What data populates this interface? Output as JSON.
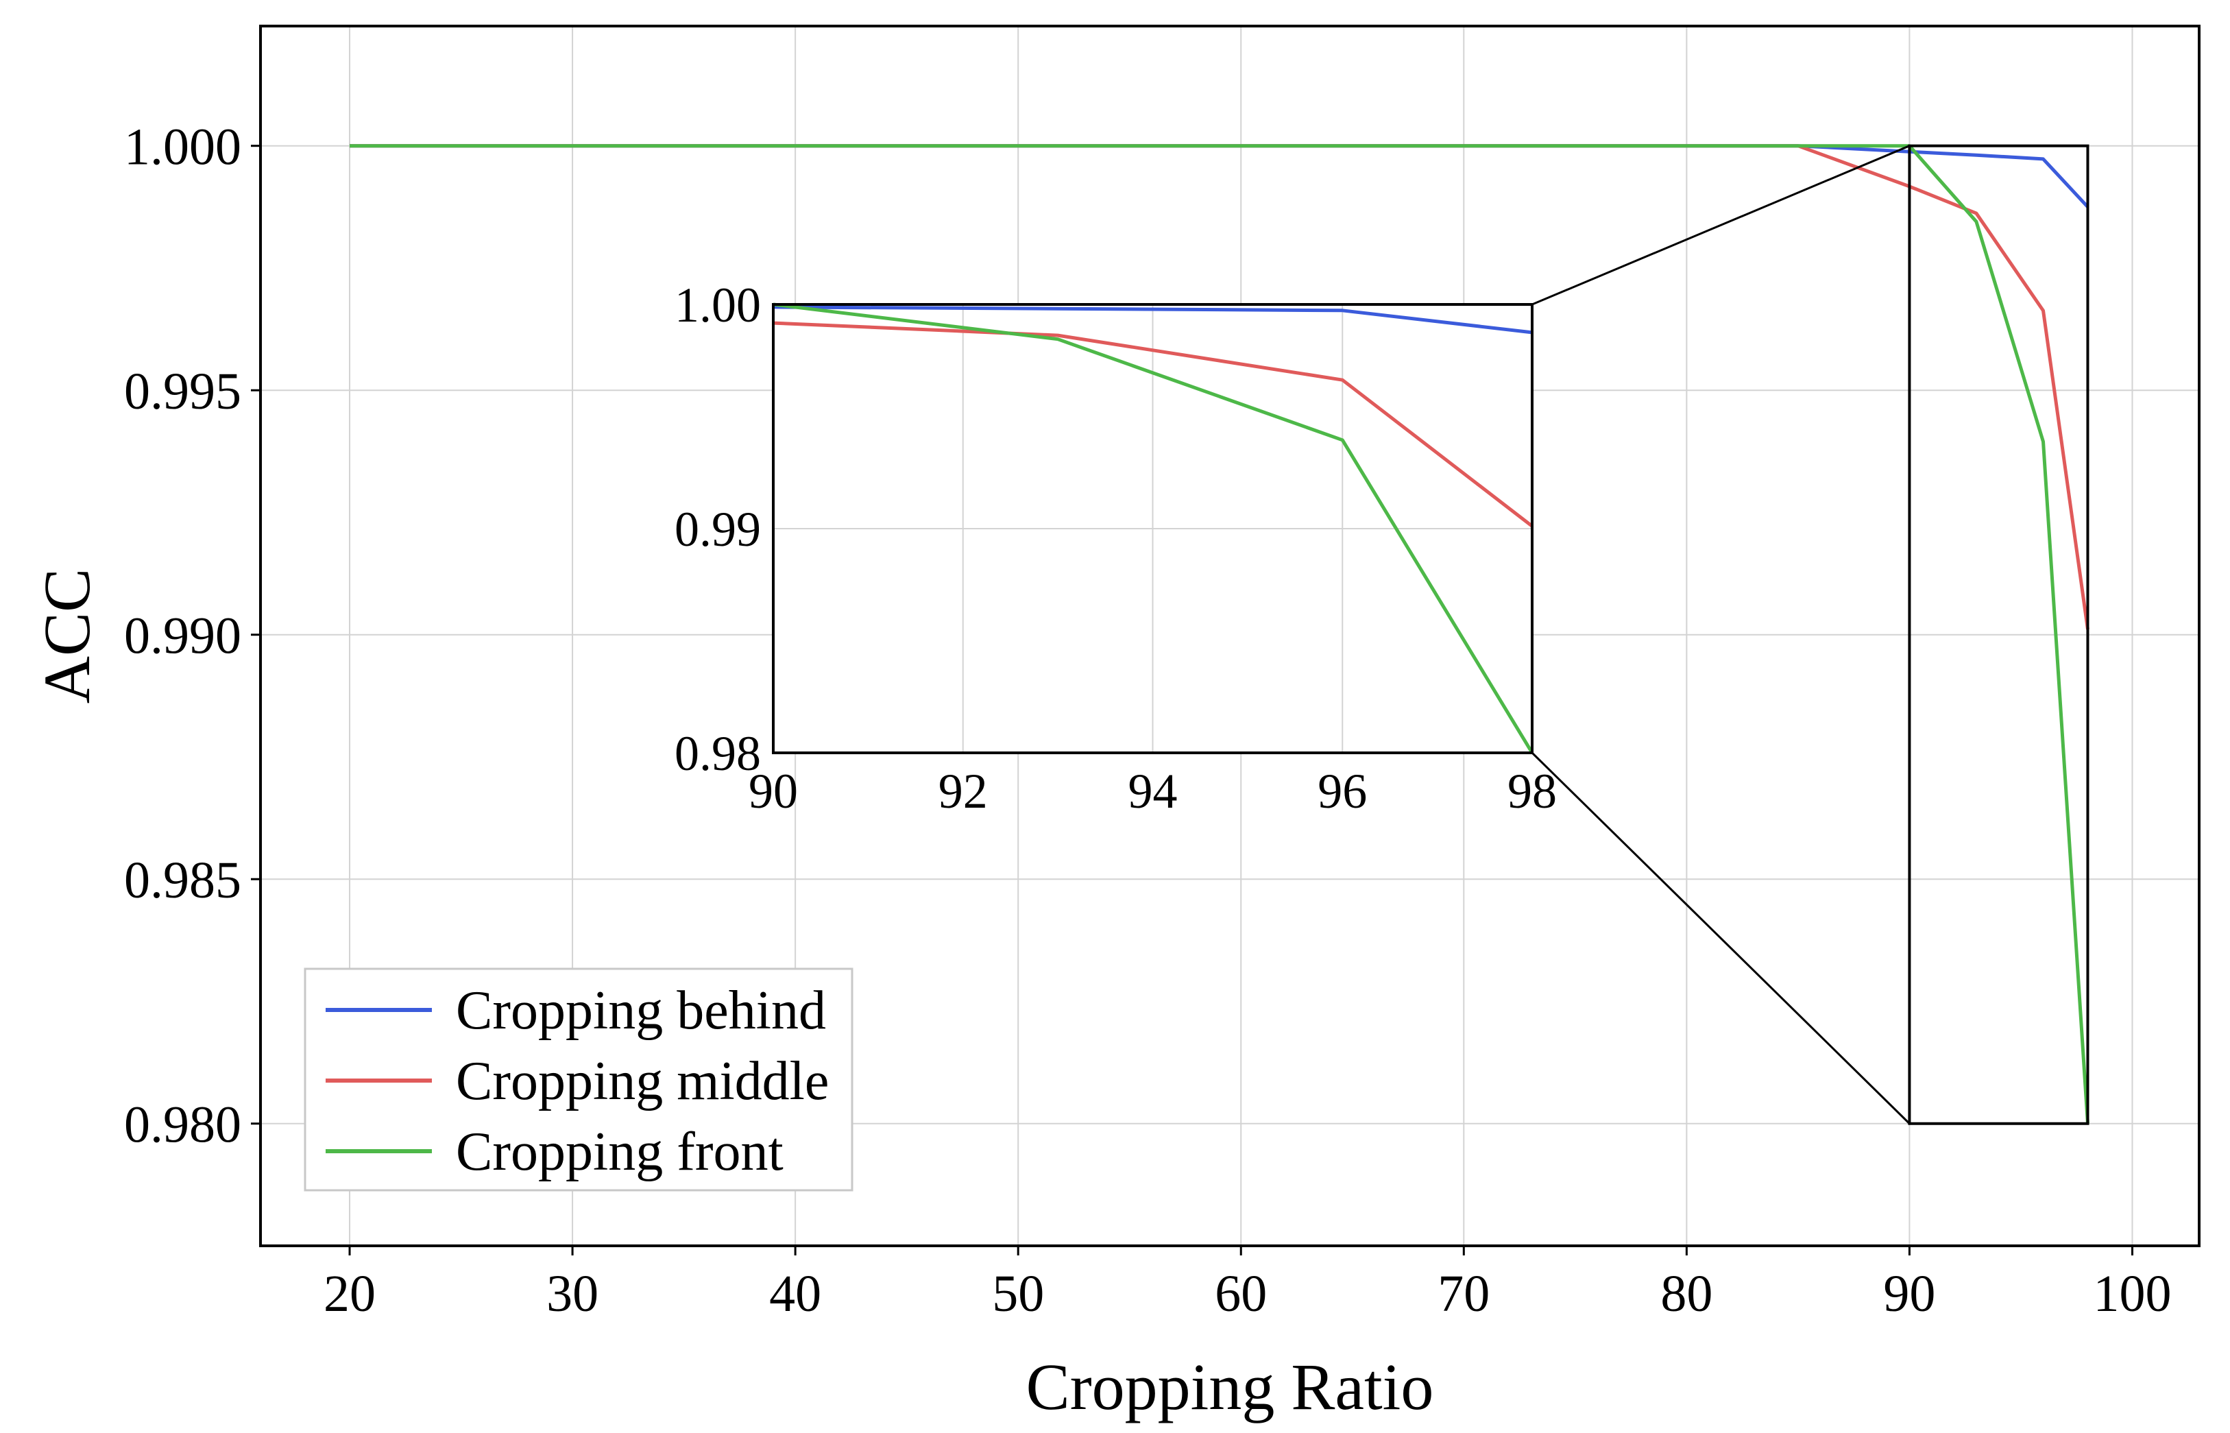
{
  "chart_data": {
    "type": "line",
    "xlabel": "Cropping Ratio",
    "ylabel": "ACC",
    "xlim": [
      16,
      103
    ],
    "ylim": [
      0.9775,
      1.00245
    ],
    "xticks": [
      20,
      30,
      40,
      50,
      60,
      70,
      80,
      90,
      100
    ],
    "xtick_labels": [
      "20",
      "30",
      "40",
      "50",
      "60",
      "70",
      "80",
      "90",
      "100"
    ],
    "yticks": [
      0.98,
      0.985,
      0.99,
      0.995,
      1.0
    ],
    "ytick_labels": [
      "0.980",
      "0.985",
      "0.990",
      "0.995",
      "1.000"
    ],
    "grid": true,
    "legend_position": "lower-left",
    "series": [
      {
        "name": "Cropping behind",
        "color": "#3b5bdb",
        "x": [
          20,
          30,
          40,
          50,
          60,
          70,
          80,
          85,
          90,
          93,
          96,
          98
        ],
        "y": [
          1.0,
          1.0,
          1.0,
          1.0,
          1.0,
          1.0,
          1.0,
          1.0,
          0.99988,
          0.99981,
          0.99973,
          0.99875
        ]
      },
      {
        "name": "Cropping middle",
        "color": "#e05a5a",
        "x": [
          20,
          30,
          40,
          50,
          60,
          70,
          80,
          85,
          90,
          93,
          96,
          98
        ],
        "y": [
          1.0,
          1.0,
          1.0,
          1.0,
          1.0,
          1.0,
          1.0,
          1.0,
          0.99917,
          0.99862,
          0.99663,
          0.99011
        ]
      },
      {
        "name": "Cropping front",
        "color": "#4db848",
        "x": [
          20,
          30,
          40,
          50,
          60,
          70,
          80,
          85,
          90,
          93,
          96,
          98
        ],
        "y": [
          1.0,
          1.0,
          1.0,
          1.0,
          1.0,
          1.0,
          1.0,
          1.0,
          1.0,
          0.99845,
          0.99395,
          0.98
        ]
      }
    ],
    "inset": {
      "xlim": [
        90,
        98
      ],
      "ylim": [
        0.98,
        1.0
      ],
      "xticks": [
        90,
        92,
        94,
        96,
        98
      ],
      "xtick_labels": [
        "90",
        "92",
        "94",
        "96",
        "98"
      ],
      "yticks": [
        0.98,
        0.99,
        1.0
      ],
      "ytick_labels": [
        "0.98",
        "0.99",
        "1.00"
      ],
      "zoom_region": {
        "x": [
          90,
          98
        ],
        "y": [
          0.98,
          1.0
        ]
      }
    }
  }
}
